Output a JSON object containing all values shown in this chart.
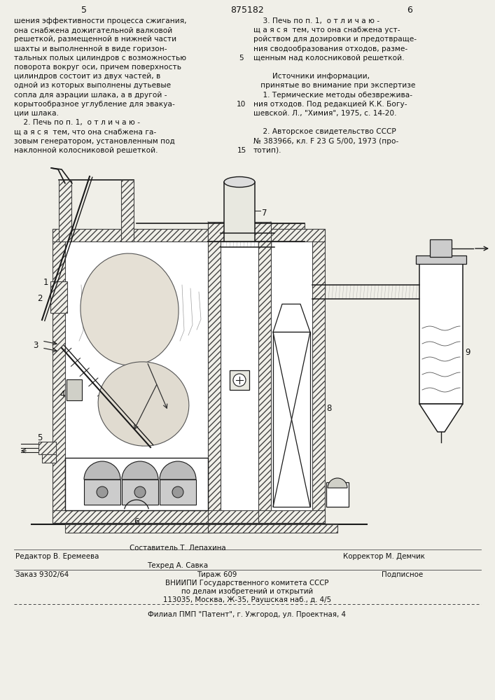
{
  "bg_color": "#f0efe8",
  "patent_number": "875182",
  "page_left": "5",
  "page_right": "6",
  "text_left_col": [
    "шения эффективности процесса сжигания,",
    "она снабжена дожигательной валковой",
    "решеткой, размещенной в нижней части",
    "шахты и выполненной в виде горизон-",
    "тальных полых цилиндров с возможностью",
    "поворота вокруг оси, причем поверхность",
    "цилиндров состоит из двух частей, в",
    "одной из которых выполнены дутьевые",
    "сопла для аэрации шлака, а в другой -",
    "корытообразное углубление для эвакуа-",
    "ции шлака.",
    "    2. Печь по п. 1,  о т л и ч а ю -",
    "щ а я с я  тем, что она снабжена га-",
    "зовым генератором, установленным под",
    "наклонной колосниковой решеткой."
  ],
  "text_right_col": [
    "    3. Печь по п. 1,  о т л и ч а ю -",
    "щ а я с я  тем, что она снабжена уст-",
    "ройством для дозировки и предотвраще-",
    "ния сводообразования отходов, разме-",
    "щенным над колосниковой решеткой.",
    "",
    "        Источники информации,",
    "   принятые во внимание при экспертизе",
    "    1. Термические методы обезвреживa-",
    "ния отходов. Под редакцией К.К. Богу-",
    "шевской. Л., \"Химия\", 1975, с. 14-20.",
    "",
    "    2. Авторское свидетельство СССР",
    "№ 383966, кл. F 23 G 5/00, 1973 (про-",
    "тотип)."
  ],
  "footer_line1_col1": "Редактор В. Еремеева",
  "footer_line1_col2": "Составитель Т. Лепахина",
  "footer_line1_col3": "Корректор М. Демчик",
  "footer_line2_col2": "Техред А. Савка",
  "footer_line3_col1": "Заказ 9302/64",
  "footer_line3_col2": "Тираж 609",
  "footer_line3_col3": "Подписное",
  "footer_line4": "ВНИИПИ Государственного комитета СССР",
  "footer_line5": "по делам изобретений и открытий",
  "footer_line6": "113035, Москва, Ж-35, Раушская наб., д. 4/5",
  "footer_line7": "Филиал ПМП \"Патент\", г. Ужгород, ул. Проектная, 4"
}
